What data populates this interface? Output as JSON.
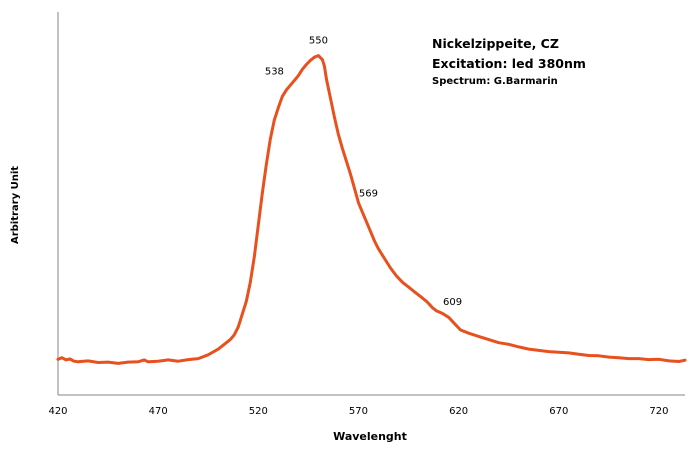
{
  "chart_data": {
    "type": "line",
    "title": "Nickelzippeite, CZ",
    "subtitle": "Excitation: led 380nm",
    "credit": "Spectrum: G.Barmarin",
    "xlabel": "Wavelenght",
    "ylabel": "Arbitrary Unit",
    "xlim": [
      420,
      733
    ],
    "ylim": [
      0,
      105
    ],
    "xticks": [
      420,
      470,
      520,
      570,
      620,
      670,
      720
    ],
    "grid": false,
    "line_color": "#E8501E",
    "series": [
      {
        "x": [
          420,
          422,
          424,
          426,
          428,
          430,
          435,
          440,
          445,
          450,
          455,
          460,
          463,
          465,
          470,
          475,
          480,
          485,
          490,
          495,
          500,
          503,
          506,
          508,
          510,
          512,
          514,
          516,
          518,
          520,
          522,
          524,
          526,
          528,
          530,
          532,
          534,
          536,
          538,
          540,
          542,
          544,
          546,
          548,
          550,
          552,
          553,
          554,
          556,
          558,
          560,
          562,
          564,
          566,
          568,
          570,
          572,
          574,
          576,
          578,
          580,
          583,
          586,
          589,
          592,
          595,
          598,
          601,
          604,
          607,
          609,
          612,
          615,
          618,
          621,
          625,
          630,
          635,
          640,
          645,
          650,
          655,
          660,
          665,
          670,
          675,
          680,
          685,
          690,
          695,
          700,
          705,
          710,
          715,
          720,
          725,
          730,
          733
        ],
        "y": [
          1.8,
          2.3,
          1.6,
          1.9,
          1.2,
          1.0,
          1.3,
          0.8,
          0.9,
          0.5,
          0.9,
          1.0,
          1.6,
          1.0,
          1.2,
          1.6,
          1.2,
          1.7,
          2.0,
          3.2,
          5.0,
          6.5,
          8.0,
          9.5,
          12.0,
          16.0,
          20.0,
          26.0,
          34.0,
          44.0,
          54.0,
          63.0,
          71.0,
          77.0,
          81.0,
          84.5,
          86.5,
          88.0,
          89.5,
          91.0,
          93.0,
          94.5,
          95.8,
          96.8,
          97.3,
          96.0,
          94.0,
          90.0,
          84.0,
          78.0,
          72.5,
          68.0,
          64.0,
          60.0,
          55.5,
          51.0,
          48.0,
          45.0,
          42.0,
          39.0,
          36.5,
          33.5,
          30.5,
          28.0,
          26.0,
          24.5,
          23.0,
          21.5,
          20.0,
          18.0,
          17.0,
          16.2,
          15.0,
          13.0,
          11.0,
          10.0,
          9.0,
          8.0,
          7.0,
          6.5,
          5.7,
          5.0,
          4.6,
          4.2,
          4.0,
          3.8,
          3.4,
          3.0,
          2.9,
          2.5,
          2.3,
          2.0,
          2.0,
          1.7,
          1.8,
          1.3,
          1.1,
          1.5
        ]
      }
    ],
    "annotations": [
      {
        "text": "550",
        "x": 550,
        "y": 97.3
      },
      {
        "text": "538",
        "x": 538,
        "y": 89.5
      },
      {
        "text": "569",
        "x": 569,
        "y": 53
      },
      {
        "text": "609",
        "x": 609,
        "y": 17
      }
    ]
  }
}
